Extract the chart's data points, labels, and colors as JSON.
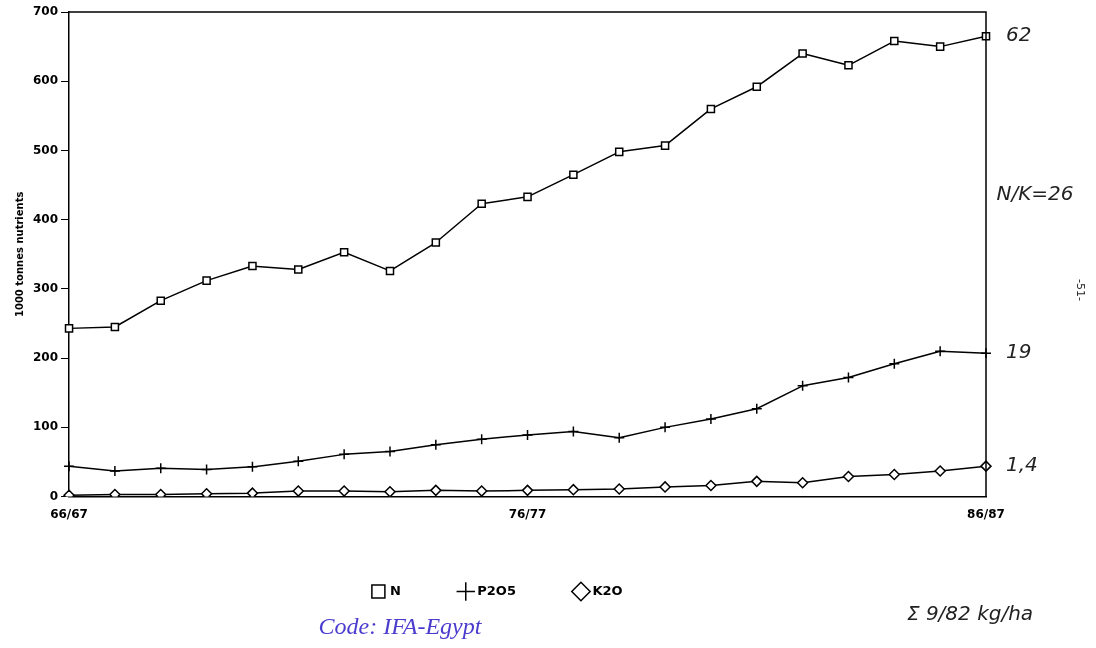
{
  "chart_data": {
    "type": "line",
    "ylabel": "1000 tonnes nutrients",
    "categories": [
      "66/67",
      null,
      null,
      null,
      null,
      null,
      null,
      null,
      null,
      null,
      "76/77",
      null,
      null,
      null,
      null,
      null,
      null,
      null,
      null,
      null,
      "86/87"
    ],
    "series": [
      {
        "name": "N",
        "color": "#000000",
        "marker": "square",
        "values": [
          243,
          245,
          283,
          312,
          333,
          328,
          353,
          326,
          367,
          423,
          433,
          465,
          498,
          507,
          560,
          592,
          640,
          623,
          658,
          650,
          665
        ]
      },
      {
        "name": "P2O5",
        "color": "#000000",
        "marker": "cross",
        "values": [
          44,
          37,
          41,
          39,
          43,
          51,
          61,
          65,
          75,
          83,
          89,
          94,
          85,
          100,
          112,
          127,
          160,
          172,
          192,
          210,
          207
        ]
      },
      {
        "name": "K2O",
        "color": "#000000",
        "marker": "diamond",
        "values": [
          2,
          3,
          3,
          4,
          5,
          8,
          8,
          7,
          9,
          8,
          9,
          10,
          11,
          14,
          16,
          22,
          20,
          29,
          32,
          37,
          44
        ]
      }
    ],
    "ylim": [
      0,
      700
    ],
    "yticks": [
      0,
      100,
      200,
      300,
      400,
      500,
      600,
      700
    ],
    "grid": false,
    "legend": "bottom",
    "annotations": [
      {
        "text": "62",
        "x": "86/87",
        "y": 665
      },
      {
        "text": "19",
        "x": "86/87",
        "y": 207
      },
      {
        "text": "1,4",
        "x": "86/87",
        "y": 44
      },
      "N/K=26",
      "Σ 9/82 kg/ha",
      "-51-",
      "Code: IFA-Egypt"
    ]
  }
}
